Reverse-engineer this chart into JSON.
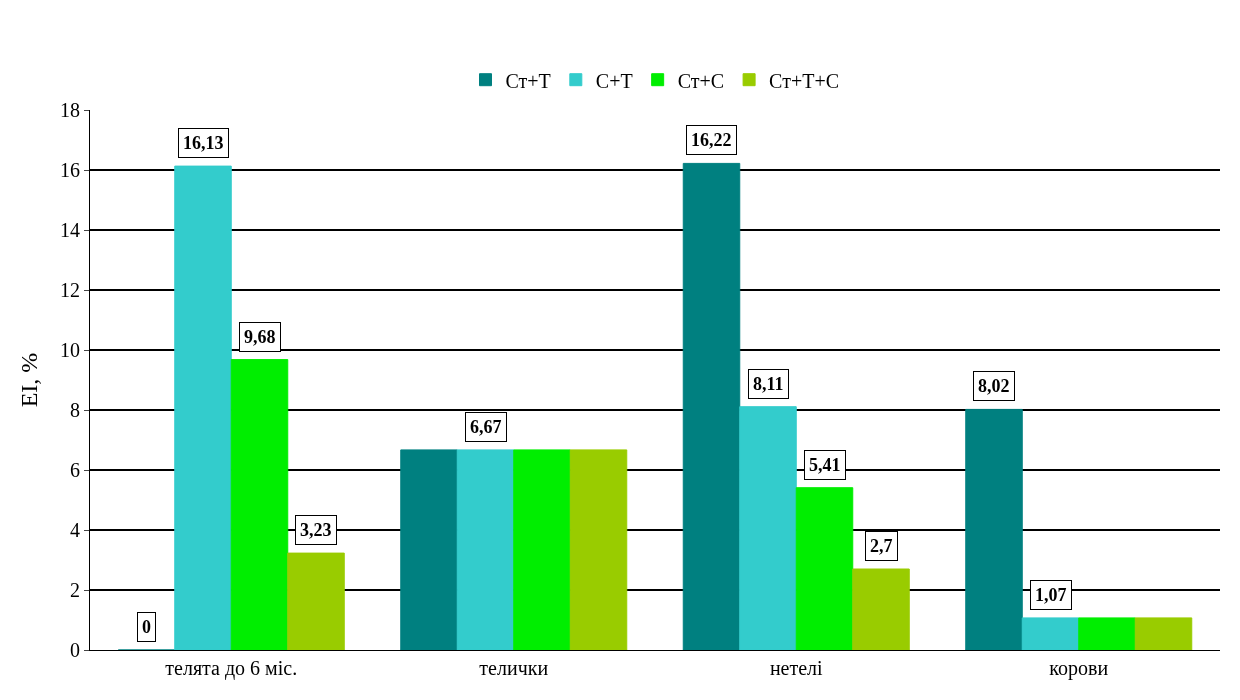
{
  "chart_data": {
    "type": "bar",
    "ylabel": "EI, %",
    "categories": [
      "телята до 6 міс.",
      "телички",
      "нетелі",
      "корови"
    ],
    "series": [
      {
        "name": "Ст+Т",
        "color": "#008080",
        "values": [
          0,
          6.67,
          16.22,
          8.02
        ],
        "value_labels": [
          "0",
          null,
          "16,22",
          "8,02"
        ]
      },
      {
        "name": "С+Т",
        "color": "#33cccc",
        "values": [
          16.13,
          6.67,
          8.11,
          1.07
        ],
        "value_labels": [
          "16,13",
          "6,67",
          "8,11",
          "1,07"
        ]
      },
      {
        "name": "Ст+С",
        "color": "#00ee00",
        "values": [
          9.68,
          6.67,
          5.41,
          1.07
        ],
        "value_labels": [
          "9,68",
          null,
          "5,41",
          null
        ]
      },
      {
        "name": "Ст+Т+С",
        "color": "#99cc00",
        "values": [
          3.23,
          6.67,
          2.7,
          1.07
        ],
        "value_labels": [
          "3,23",
          null,
          "2,7",
          null
        ]
      }
    ],
    "ylim": [
      0,
      18
    ],
    "yticks": [
      0,
      2,
      4,
      6,
      8,
      10,
      12,
      14,
      16,
      18
    ],
    "grid": "y",
    "legend": "top"
  }
}
